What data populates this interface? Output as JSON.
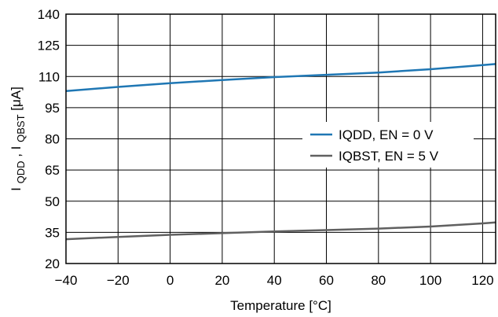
{
  "chart_data": {
    "type": "line",
    "xlabel": "Temperature [°C]",
    "ylabel": {
      "prefix": "I",
      "sub1": "QDD",
      "sep": ", I",
      "sub2": "QBST",
      "unit": " [μA]"
    },
    "xlim": [
      -40,
      125
    ],
    "ylim": [
      20,
      140
    ],
    "x_ticks": [
      -40,
      -20,
      0,
      20,
      40,
      60,
      80,
      100,
      120
    ],
    "x_tick_labels": [
      "−40",
      "−20",
      "0",
      "20",
      "40",
      "60",
      "80",
      "100",
      "120"
    ],
    "y_ticks": [
      20,
      35,
      50,
      65,
      80,
      95,
      110,
      125,
      140
    ],
    "y_tick_labels": [
      "20",
      "35",
      "50",
      "65",
      "80",
      "95",
      "110",
      "125",
      "140"
    ],
    "grid": true,
    "legend_position": "right",
    "series": [
      {
        "name": "IQDD, EN = 0 V",
        "color": "#1f77b4",
        "x": [
          -40,
          -20,
          0,
          20,
          40,
          60,
          80,
          100,
          120,
          125
        ],
        "y": [
          103,
          105,
          106.8,
          108.3,
          109.7,
          110.8,
          111.9,
          113.5,
          115.5,
          116
        ]
      },
      {
        "name": "IQBST, EN = 5 V",
        "color": "#606060",
        "x": [
          -40,
          -20,
          0,
          20,
          40,
          60,
          80,
          100,
          120,
          125
        ],
        "y": [
          31.7,
          32.8,
          33.8,
          34.6,
          35.4,
          36.1,
          36.8,
          37.8,
          39.3,
          39.8
        ]
      }
    ]
  }
}
